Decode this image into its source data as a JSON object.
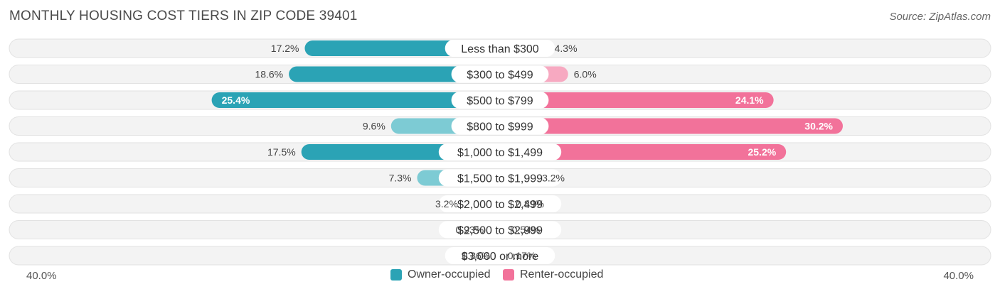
{
  "header": {
    "title": "MONTHLY HOUSING COST TIERS IN ZIP CODE 39401",
    "source": "Source: ZipAtlas.com"
  },
  "colors": {
    "owner_strong": "#2ba3b5",
    "owner_light": "#7dcbd4",
    "renter_strong": "#f2729a",
    "renter_light": "#f7a9c1",
    "track": "#f0f0f0"
  },
  "chart_data": {
    "type": "bar",
    "orientation": "diverging-horizontal",
    "categories": [
      "Less than $300",
      "$300 to $499",
      "$500 to $799",
      "$800 to $999",
      "$1,000 to $1,499",
      "$1,500 to $1,999",
      "$2,000 to $2,499",
      "$2,500 to $2,999",
      "$3,000 or more"
    ],
    "series": [
      {
        "name": "Owner-occupied",
        "values": [
          17.2,
          18.6,
          25.4,
          9.6,
          17.5,
          7.3,
          3.2,
          0.93,
          0.36
        ],
        "labels": [
          "17.2%",
          "18.6%",
          "25.4%",
          "9.6%",
          "17.5%",
          "7.3%",
          "3.2%",
          "0.93%",
          "0.36%"
        ]
      },
      {
        "name": "Renter-occupied",
        "values": [
          4.3,
          6.0,
          24.1,
          30.2,
          25.2,
          3.2,
          0.89,
          0.54,
          0.17
        ],
        "labels": [
          "4.3%",
          "6.0%",
          "24.1%",
          "30.2%",
          "25.2%",
          "3.2%",
          "0.89%",
          "0.54%",
          "0.17%"
        ]
      }
    ],
    "xlim": [
      -40,
      40
    ],
    "axis_min_label": "40.0%",
    "axis_max_label": "40.0%",
    "legend_position": "bottom-center"
  }
}
